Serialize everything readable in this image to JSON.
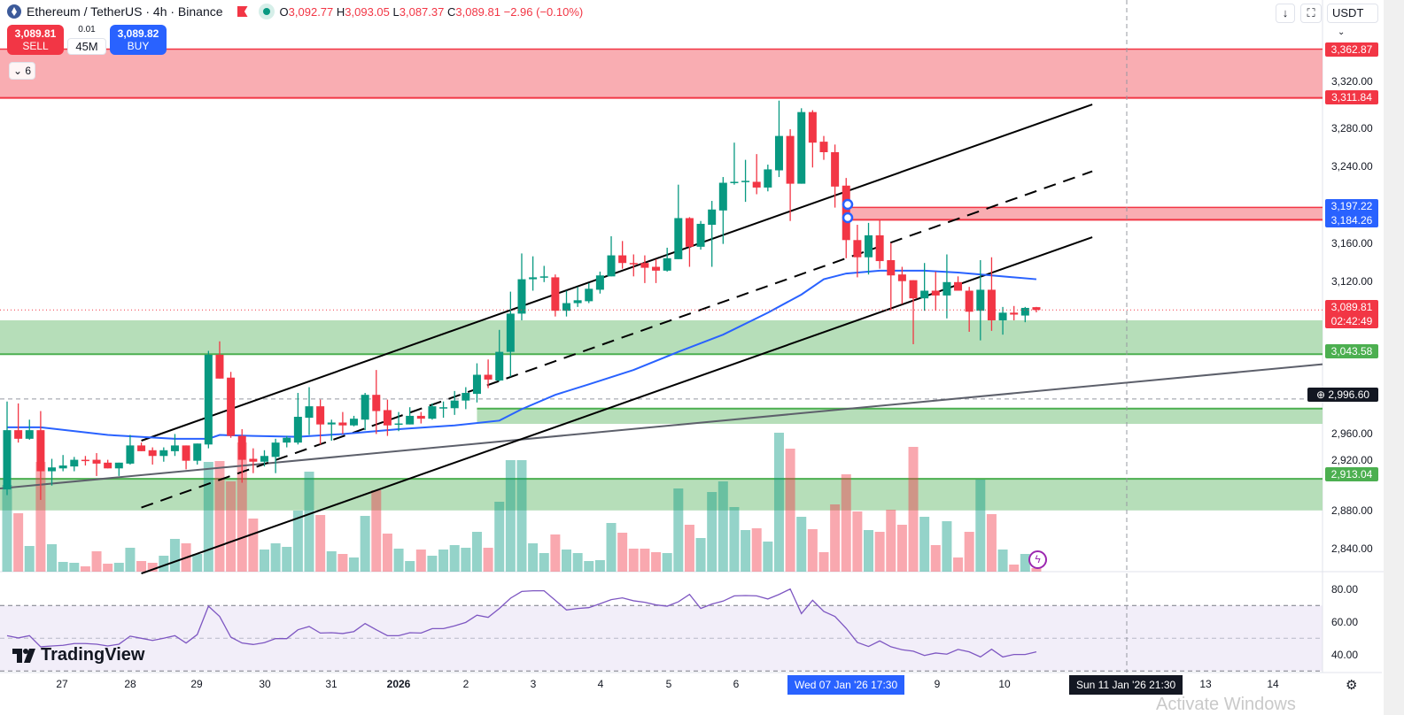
{
  "header": {
    "symbol_title": "Ethereum / TetherUS · 4h · Binance",
    "o_label": "O",
    "o": "3,092.77",
    "h_label": "H",
    "h": "3,093.05",
    "l_label": "L",
    "l": "3,087.37",
    "c_label": "C",
    "c": "3,089.81",
    "change": "−2.96 (−0.10%)"
  },
  "trade": {
    "sell_price": "3,089.81",
    "sell_label": "SELL",
    "spread": "0.01",
    "quantity": "45M",
    "buy_price": "3,089.82",
    "buy_label": "BUY"
  },
  "indicators_toggle": "6",
  "toolbar": {
    "currency": "USDT",
    "currency_icon": "chevron-down-icon",
    "scroll_icon": "arrow-down-icon",
    "fullscreen_icon": "fullscreen-icon"
  },
  "colors": {
    "up": "#089981",
    "down": "#f23645",
    "ema": "#2962ff",
    "rsi": "#7e57c2",
    "zone_red": "#f9a9ae",
    "zone_green": "#b2dcb5",
    "zone_green_line": "#4caf50"
  },
  "price_axis": {
    "ticks": [
      "3,320.00",
      "3,280.00",
      "3,240.00",
      "3,160.00",
      "3,120.00",
      "2,960.00",
      "2,920.00",
      "2,880.00",
      "2,840.00"
    ],
    "badges": [
      {
        "text": "3,362.87",
        "type": "red"
      },
      {
        "text": "3,311.84",
        "type": "red"
      },
      {
        "text": "3,197.22",
        "text2": "3,184.26",
        "type": "blue"
      },
      {
        "text": "3,089.81",
        "text2": "02:42:49",
        "type": "red"
      },
      {
        "text": "3,043.58",
        "type": "green"
      },
      {
        "text": "2,996.60",
        "type": "dark"
      },
      {
        "text": "2,913.04",
        "type": "green"
      }
    ]
  },
  "rsi_axis": {
    "ticks": [
      "80.00",
      "60.00",
      "40.00"
    ]
  },
  "time_axis": {
    "labels": [
      "27",
      "28",
      "29",
      "30",
      "31",
      "2026",
      "2",
      "3",
      "4",
      "5",
      "6",
      "9",
      "10",
      "13",
      "14"
    ],
    "crosshair_a": "Wed 07 Jan '26   17:30",
    "crosshair_b": "Sun 11 Jan '26   21:30"
  },
  "branding": {
    "logo": "TradingView"
  },
  "watermark": "Activate Windows",
  "chart_data": {
    "type": "candlestick",
    "interval": "4h",
    "price_range": [
      2820,
      3380
    ],
    "candles_ohlc": [
      [
        2902,
        2994,
        2896,
        2964
      ],
      [
        2964,
        2992,
        2951,
        2955
      ],
      [
        2955,
        2975,
        2954,
        2964
      ],
      [
        2964,
        2984,
        2891,
        2921
      ],
      [
        2921,
        2934,
        2906,
        2925
      ],
      [
        2924,
        2938,
        2921,
        2927
      ],
      [
        2926,
        2936,
        2921,
        2933
      ],
      [
        2933,
        2937,
        2927,
        2932
      ],
      [
        2933,
        2940,
        2916,
        2929
      ],
      [
        2930,
        2933,
        2924,
        2924
      ],
      [
        2924,
        2930,
        2916,
        2930
      ],
      [
        2929,
        2959,
        2928,
        2948
      ],
      [
        2948,
        2951,
        2942,
        2942
      ],
      [
        2943,
        2946,
        2928,
        2937
      ],
      [
        2937,
        2946,
        2931,
        2943
      ],
      [
        2942,
        2960,
        2937,
        2948
      ],
      [
        2948,
        2948,
        2923,
        2932
      ],
      [
        2932,
        2950,
        2928,
        2950
      ],
      [
        2949,
        3047,
        2945,
        3043
      ],
      [
        3043,
        3057,
        3018,
        3018
      ],
      [
        3019,
        3025,
        2956,
        2958
      ],
      [
        2958,
        2965,
        2909,
        2933
      ],
      [
        2934,
        2945,
        2919,
        2931
      ],
      [
        2931,
        2943,
        2926,
        2937
      ],
      [
        2936,
        2955,
        2919,
        2951
      ],
      [
        2951,
        2958,
        2946,
        2956
      ],
      [
        2951,
        3003,
        2949,
        2978
      ],
      [
        2977,
        3009,
        2959,
        2989
      ],
      [
        2989,
        2996,
        2949,
        2970
      ],
      [
        2970,
        2975,
        2953,
        2972
      ],
      [
        2972,
        2983,
        2960,
        2969
      ],
      [
        2969,
        2979,
        2968,
        2976
      ],
      [
        2975,
        3003,
        2964,
        3001
      ],
      [
        3001,
        3027,
        2960,
        2984
      ],
      [
        2985,
        2996,
        2958,
        2969
      ],
      [
        2970,
        2983,
        2963,
        2971
      ],
      [
        2970,
        2988,
        2970,
        2979
      ],
      [
        2979,
        2983,
        2971,
        2976
      ],
      [
        2976,
        2992,
        2975,
        2989
      ],
      [
        2987,
        2994,
        2977,
        2988
      ],
      [
        2987,
        3005,
        2980,
        2995
      ],
      [
        2995,
        3009,
        2986,
        3003
      ],
      [
        3002,
        3034,
        2993,
        3022
      ],
      [
        3022,
        3038,
        3008,
        3017
      ],
      [
        3016,
        3069,
        3015,
        3046
      ],
      [
        3046,
        3109,
        3020,
        3086
      ],
      [
        3086,
        3149,
        3079,
        3122
      ],
      [
        3122,
        3146,
        3110,
        3124
      ],
      [
        3124,
        3136,
        3119,
        3125
      ],
      [
        3124,
        3127,
        3083,
        3089
      ],
      [
        3089,
        3110,
        3083,
        3097
      ],
      [
        3097,
        3114,
        3093,
        3100
      ],
      [
        3099,
        3118,
        3097,
        3112
      ],
      [
        3111,
        3130,
        3107,
        3126
      ],
      [
        3125,
        3167,
        3125,
        3147
      ],
      [
        3147,
        3162,
        3133,
        3139
      ],
      [
        3139,
        3148,
        3125,
        3138
      ],
      [
        3139,
        3147,
        3118,
        3134
      ],
      [
        3135,
        3143,
        3118,
        3131
      ],
      [
        3131,
        3155,
        3130,
        3144
      ],
      [
        3143,
        3221,
        3143,
        3186
      ],
      [
        3186,
        3187,
        3135,
        3156
      ],
      [
        3156,
        3183,
        3153,
        3180
      ],
      [
        3179,
        3204,
        3135,
        3195
      ],
      [
        3194,
        3229,
        3159,
        3223
      ],
      [
        3223,
        3265,
        3221,
        3224
      ],
      [
        3224,
        3247,
        3203,
        3225
      ],
      [
        3224,
        3253,
        3211,
        3218
      ],
      [
        3218,
        3242,
        3214,
        3237
      ],
      [
        3236,
        3309,
        3229,
        3272
      ],
      [
        3272,
        3279,
        3183,
        3222
      ],
      [
        3222,
        3301,
        3222,
        3297
      ],
      [
        3297,
        3299,
        3239,
        3265
      ],
      [
        3266,
        3272,
        3247,
        3255
      ],
      [
        3255,
        3263,
        3197,
        3219
      ],
      [
        3220,
        3228,
        3144,
        3163
      ],
      [
        3163,
        3179,
        3124,
        3145
      ],
      [
        3145,
        3181,
        3127,
        3168
      ],
      [
        3168,
        3184,
        3133,
        3141
      ],
      [
        3142,
        3160,
        3089,
        3126
      ],
      [
        3127,
        3135,
        3096,
        3120
      ],
      [
        3121,
        3121,
        3054,
        3102
      ],
      [
        3102,
        3139,
        3089,
        3110
      ],
      [
        3110,
        3130,
        3089,
        3105
      ],
      [
        3105,
        3148,
        3081,
        3119
      ],
      [
        3119,
        3125,
        3110,
        3110
      ],
      [
        3110,
        3114,
        3067,
        3088
      ],
      [
        3089,
        3142,
        3058,
        3111
      ],
      [
        3111,
        3145,
        3068,
        3079
      ],
      [
        3079,
        3093,
        3064,
        3087
      ],
      [
        3087,
        3094,
        3079,
        3085
      ],
      [
        3084,
        3093,
        3077,
        3092
      ],
      [
        3092.77,
        3093.05,
        3087.37,
        3089.81
      ]
    ],
    "volume_relative": [
      98,
      66,
      29,
      124,
      31,
      11,
      10,
      6,
      23,
      9,
      10,
      27,
      12,
      10,
      18,
      37,
      32,
      20,
      124,
      125,
      102,
      146,
      60,
      25,
      32,
      28,
      69,
      113,
      64,
      23,
      20,
      16,
      63,
      92,
      43,
      26,
      12,
      25,
      18,
      25,
      30,
      27,
      45,
      27,
      79,
      126,
      126,
      32,
      21,
      42,
      25,
      21,
      12,
      13,
      55,
      44,
      26,
      26,
      22,
      21,
      94,
      53,
      38,
      90,
      102,
      73,
      47,
      49,
      34,
      157,
      139,
      62,
      48,
      22,
      76,
      110,
      68,
      47,
      45,
      70,
      53,
      141,
      62,
      30,
      57,
      16,
      45,
      104,
      65,
      25,
      8,
      20,
      4
    ],
    "ema_knots": [
      [
        1,
        2967
      ],
      [
        4,
        2967
      ],
      [
        10,
        2959
      ],
      [
        16,
        2955
      ],
      [
        19,
        2955
      ],
      [
        20,
        2959
      ],
      [
        23,
        2958
      ],
      [
        27,
        2957
      ],
      [
        31,
        2960
      ],
      [
        36,
        2965
      ],
      [
        41,
        2969
      ],
      [
        45,
        2974
      ],
      [
        47,
        2986
      ],
      [
        50,
        3001
      ],
      [
        53,
        3012
      ],
      [
        57,
        3027
      ],
      [
        61,
        3046
      ],
      [
        65,
        3064
      ],
      [
        69,
        3087
      ],
      [
        72,
        3106
      ],
      [
        74,
        3122
      ],
      [
        76,
        3128
      ],
      [
        79,
        3131
      ],
      [
        83,
        3131
      ],
      [
        86,
        3129
      ],
      [
        89,
        3126
      ],
      [
        93,
        3122
      ]
    ],
    "rsi": [
      51.6,
      50.2,
      51.6,
      44.8,
      45.3,
      45.7,
      46.8,
      46.8,
      46.4,
      45.3,
      46.4,
      51.3,
      50,
      48.7,
      50,
      51.6,
      47.1,
      52.3,
      69.6,
      63.3,
      50.7,
      47.1,
      46.2,
      47.3,
      49.8,
      49.8,
      55.2,
      57.2,
      53.2,
      53.4,
      52.9,
      54.1,
      59,
      55.2,
      51.6,
      51.6,
      53.4,
      53.2,
      55.9,
      55.9,
      57.6,
      59.7,
      64.1,
      62.8,
      68.2,
      74.5,
      78.6,
      79,
      79,
      73.2,
      67.3,
      68.2,
      68.7,
      71.1,
      73.6,
      74.7,
      72.9,
      72,
      70.4,
      69.6,
      72.3,
      76.8,
      68.2,
      70.9,
      72.7,
      75.9,
      76.1,
      75.9,
      74,
      76.8,
      80.1,
      65.1,
      73.2,
      66.4,
      63.3,
      56.1,
      47.5,
      45,
      48.4,
      44.8,
      43,
      42.1,
      39.5,
      41,
      40.3,
      43.2,
      41.7,
      38.6,
      43.3,
      38.6,
      40.1,
      40.1,
      41.7
    ],
    "rsi_levels": [
      70,
      50,
      30
    ],
    "zones": [
      {
        "kind": "supply",
        "top": 3362.87,
        "bottom": 3311.84,
        "color": "red"
      },
      {
        "kind": "supply",
        "top": 3197.22,
        "bottom": 3184.26,
        "color": "red",
        "from_candle": 76
      },
      {
        "kind": "demand",
        "top": 3079,
        "bottom": 3043.58,
        "color": "green"
      },
      {
        "kind": "demand",
        "top": 2986.6,
        "bottom": 2970.6,
        "color": "green",
        "from_candle": 43
      },
      {
        "kind": "demand",
        "top": 2913.04,
        "bottom": 2880,
        "color": "green"
      }
    ],
    "channel": {
      "from_candle": 13,
      "to_candle": 98,
      "upper": [
        2953,
        3305
      ],
      "middle": [
        2883,
        3235
      ],
      "lower": [
        2814,
        3166
      ]
    },
    "trendline": {
      "from_price": 2903,
      "to_price": 3033
    },
    "last_price": 3089.81,
    "crosshair_price": 2996.6
  }
}
